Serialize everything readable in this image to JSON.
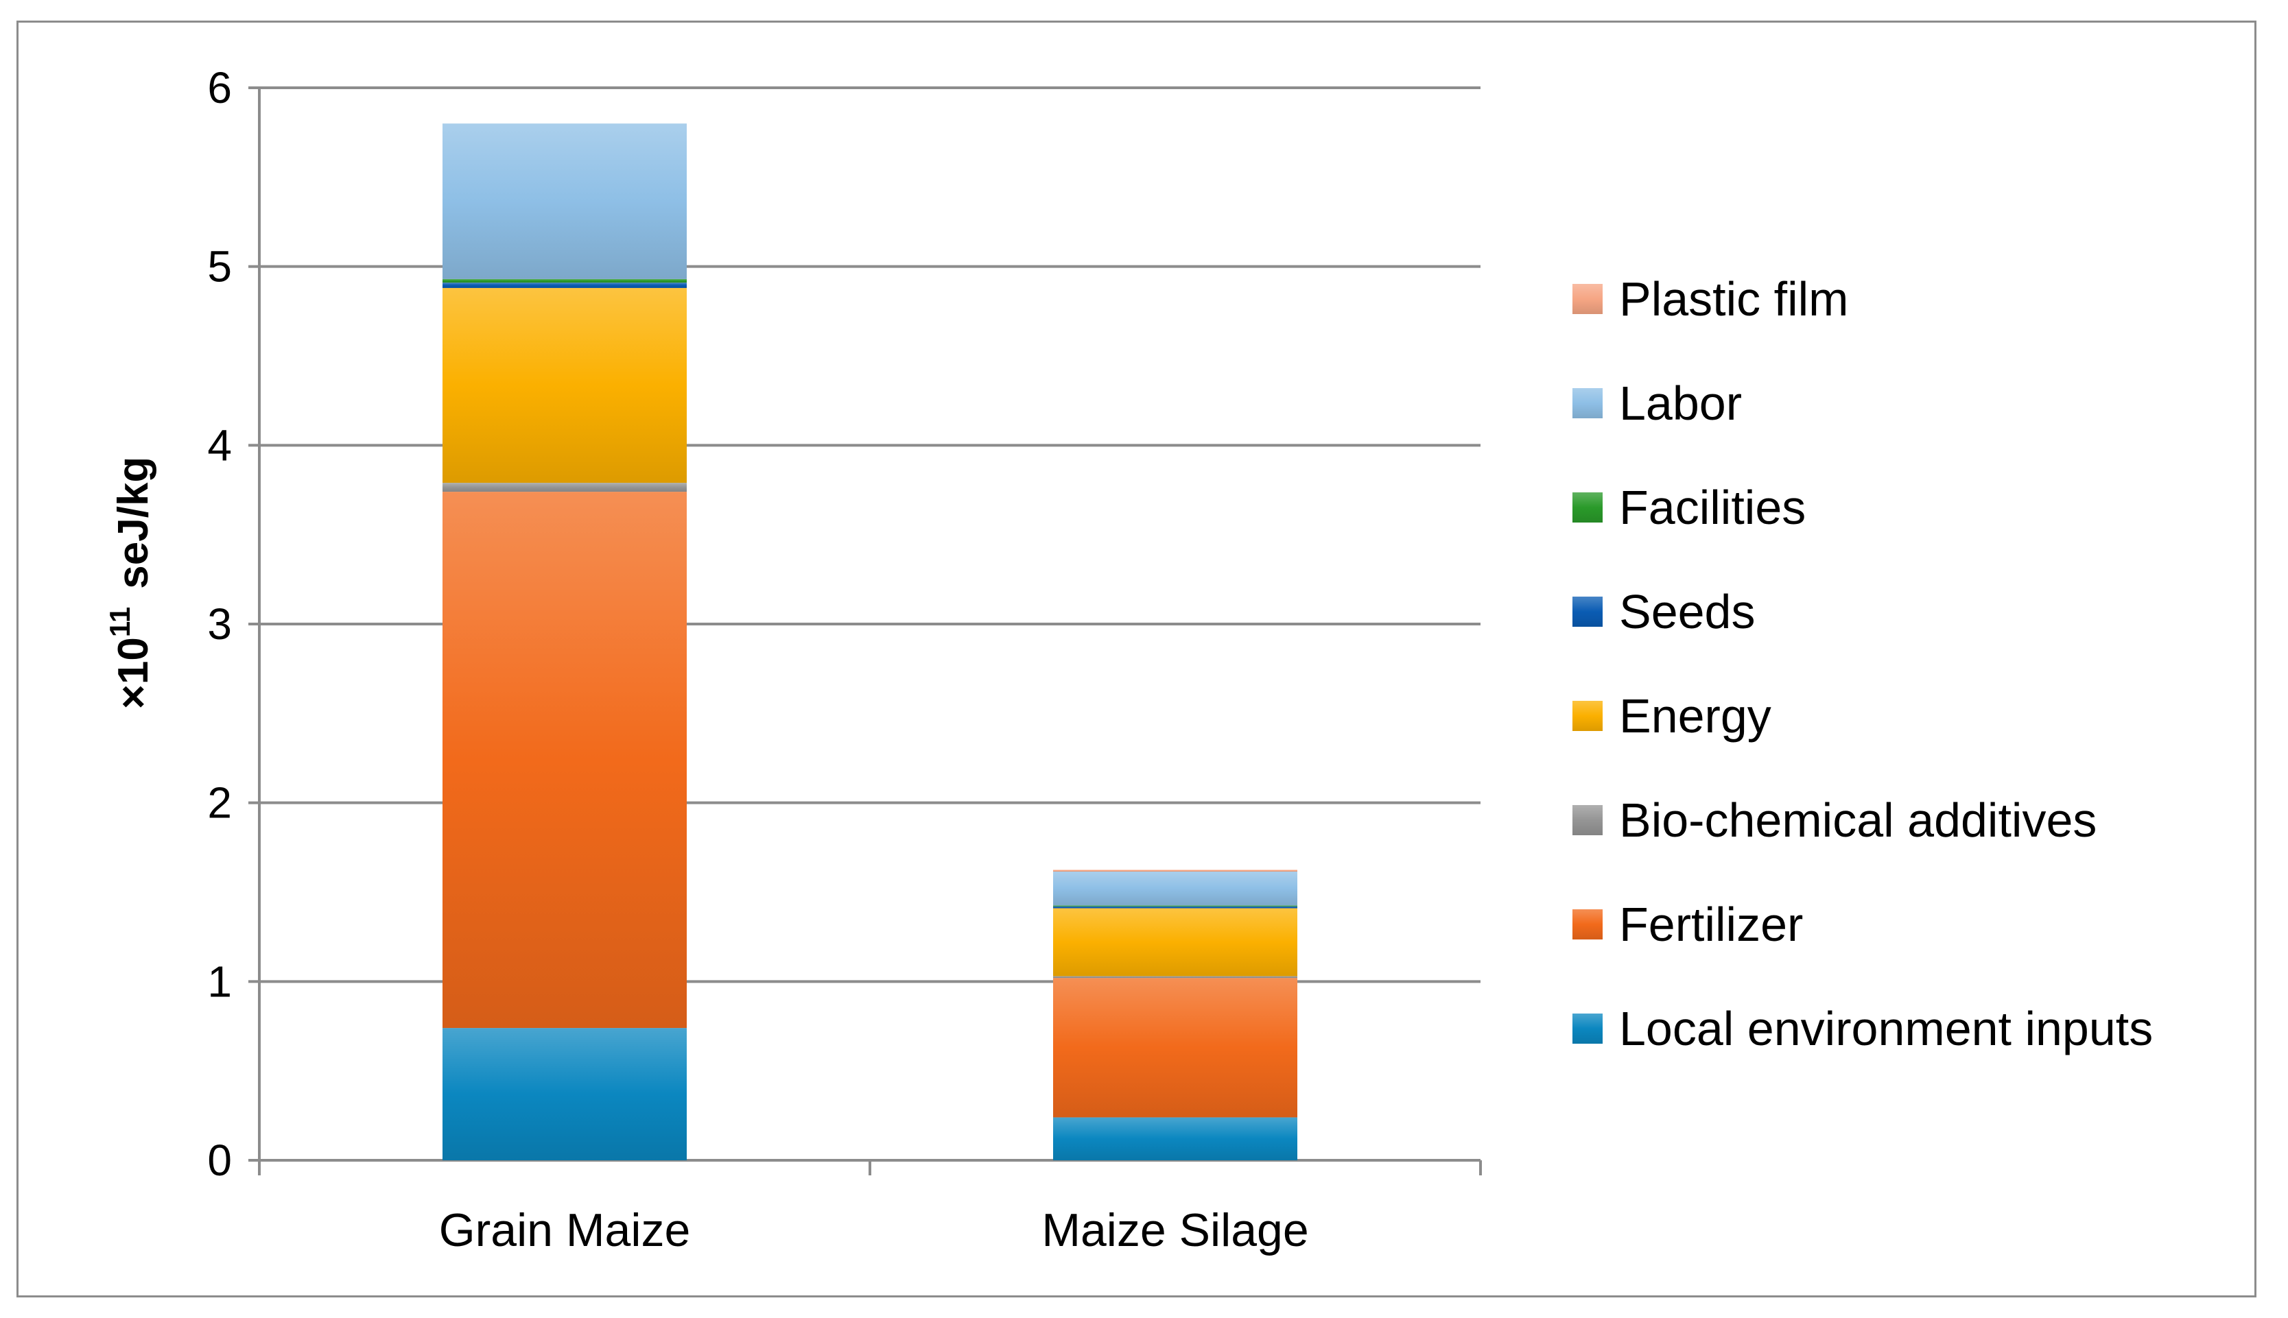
{
  "chart_data": {
    "type": "bar",
    "stacked": true,
    "title": "",
    "xlabel": "",
    "ylabel": "×10",
    "ylabel_exponent": "11",
    "ylabel_unit": "seJ/kg",
    "ylim": [
      0,
      6
    ],
    "yticks": [
      "0",
      "1",
      "2",
      "3",
      "4",
      "5",
      "6"
    ],
    "categories": [
      "Grain Maize",
      "Maize Silage"
    ],
    "legend_position": "right",
    "grid": true,
    "series": [
      {
        "name": "Local environment inputs",
        "color": "#0b87c0",
        "values": [
          0.74,
          0.24
        ]
      },
      {
        "name": "Fertilizer",
        "color": "#f26a1b",
        "values": [
          3.0,
          0.78
        ]
      },
      {
        "name": "Bio-chemical additives",
        "color": "#959595",
        "values": [
          0.05,
          0.01
        ]
      },
      {
        "name": "Energy",
        "color": "#fbb000",
        "values": [
          1.09,
          0.38
        ]
      },
      {
        "name": "Seeds",
        "color": "#0a5cb3",
        "values": [
          0.03,
          0.01
        ]
      },
      {
        "name": "Facilities",
        "color": "#2a9a2a",
        "values": [
          0.02,
          0.005
        ]
      },
      {
        "name": "Labor",
        "color": "#8ebfe6",
        "values": [
          0.87,
          0.19
        ]
      },
      {
        "name": "Plastic film",
        "color": "#f6a684",
        "values": [
          0.0,
          0.01
        ]
      }
    ]
  }
}
